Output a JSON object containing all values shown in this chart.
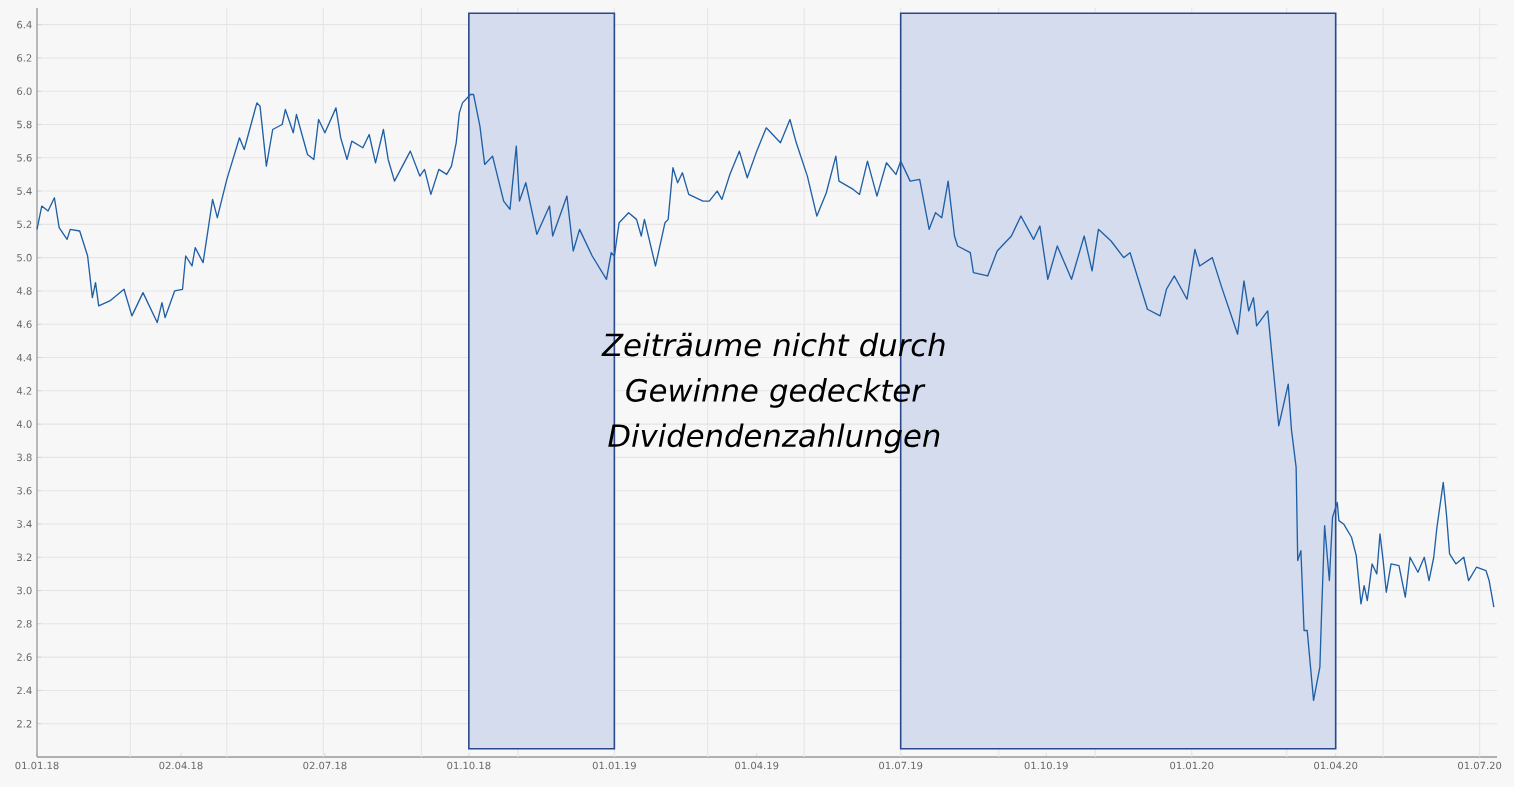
{
  "chart_data": {
    "type": "line",
    "x": [
      "2018-01-01",
      "2018-01-04",
      "2018-01-08",
      "2018-01-12",
      "2018-01-15",
      "2018-01-20",
      "2018-01-22",
      "2018-01-28",
      "2018-02-02",
      "2018-02-05",
      "2018-02-07",
      "2018-02-09",
      "2018-02-16",
      "2018-02-25",
      "2018-03-02",
      "2018-03-09",
      "2018-03-18",
      "2018-03-21",
      "2018-03-23",
      "2018-03-29",
      "2018-04-03",
      "2018-04-05",
      "2018-04-09",
      "2018-04-11",
      "2018-04-16",
      "2018-04-22",
      "2018-04-25",
      "2018-05-01",
      "2018-05-09",
      "2018-05-12",
      "2018-05-20",
      "2018-05-22",
      "2018-05-26",
      "2018-05-30",
      "2018-06-05",
      "2018-06-07",
      "2018-06-12",
      "2018-06-14",
      "2018-06-21",
      "2018-06-25",
      "2018-06-28",
      "2018-07-02",
      "2018-07-09",
      "2018-07-12",
      "2018-07-16",
      "2018-07-19",
      "2018-07-26",
      "2018-07-30",
      "2018-08-03",
      "2018-08-08",
      "2018-08-11",
      "2018-08-15",
      "2018-08-25",
      "2018-08-31",
      "2018-09-03",
      "2018-09-07",
      "2018-09-12",
      "2018-09-17",
      "2018-09-20",
      "2018-09-23",
      "2018-09-25",
      "2018-09-27",
      "2018-10-02",
      "2018-10-04",
      "2018-10-08",
      "2018-10-11",
      "2018-10-16",
      "2018-10-23",
      "2018-10-27",
      "2018-10-31",
      "2018-11-02",
      "2018-11-06",
      "2018-11-13",
      "2018-11-21",
      "2018-11-23",
      "2018-12-02",
      "2018-12-06",
      "2018-12-10",
      "2018-12-18",
      "2018-12-27",
      "2018-12-30",
      "2019-01-01",
      "2019-01-04",
      "2019-01-10",
      "2019-01-15",
      "2019-01-18",
      "2019-01-20",
      "2019-01-27",
      "2019-02-02",
      "2019-02-04",
      "2019-02-07",
      "2019-02-10",
      "2019-02-13",
      "2019-02-17",
      "2019-02-26",
      "2019-03-02",
      "2019-03-07",
      "2019-03-10",
      "2019-03-15",
      "2019-03-21",
      "2019-03-26",
      "2019-04-01",
      "2019-04-07",
      "2019-04-16",
      "2019-04-22",
      "2019-04-26",
      "2019-05-03",
      "2019-05-09",
      "2019-05-15",
      "2019-05-21",
      "2019-05-23",
      "2019-06-01",
      "2019-06-05",
      "2019-06-10",
      "2019-06-16",
      "2019-06-22",
      "2019-06-28",
      "2019-07-01",
      "2019-07-07",
      "2019-07-13",
      "2019-07-19",
      "2019-07-23",
      "2019-07-27",
      "2019-07-31",
      "2019-08-04",
      "2019-08-06",
      "2019-08-14",
      "2019-08-16",
      "2019-08-25",
      "2019-08-31",
      "2019-09-09",
      "2019-09-15",
      "2019-09-23",
      "2019-09-27",
      "2019-10-02",
      "2019-10-08",
      "2019-10-17",
      "2019-10-25",
      "2019-10-30",
      "2019-11-03",
      "2019-11-11",
      "2019-11-19",
      "2019-11-23",
      "2019-12-04",
      "2019-12-12",
      "2019-12-16",
      "2019-12-21",
      "2019-12-29",
      "2020-01-03",
      "2020-01-06",
      "2020-01-14",
      "2020-01-20",
      "2020-01-30",
      "2020-02-03",
      "2020-02-06",
      "2020-02-09",
      "2020-02-11",
      "2020-02-18",
      "2020-02-25",
      "2020-03-02",
      "2020-03-04",
      "2020-03-07",
      "2020-03-08",
      "2020-03-10",
      "2020-03-12",
      "2020-03-14",
      "2020-03-18",
      "2020-03-22",
      "2020-03-23",
      "2020-03-25",
      "2020-03-28",
      "2020-03-30",
      "2020-04-02",
      "2020-04-03",
      "2020-04-06",
      "2020-04-11",
      "2020-04-14",
      "2020-04-17",
      "2020-04-19",
      "2020-04-21",
      "2020-04-24",
      "2020-04-27",
      "2020-04-29",
      "2020-05-01",
      "2020-05-03",
      "2020-05-06",
      "2020-05-11",
      "2020-05-15",
      "2020-05-18",
      "2020-05-23",
      "2020-05-27",
      "2020-05-30",
      "2020-06-02",
      "2020-06-04",
      "2020-06-08",
      "2020-06-10",
      "2020-06-12",
      "2020-06-16",
      "2020-06-21",
      "2020-06-24",
      "2020-06-29",
      "2020-07-05",
      "2020-07-07",
      "2020-07-10"
    ],
    "series": [
      {
        "color": "#1f5fa6",
        "values": [
          5.17,
          5.31,
          5.28,
          5.36,
          5.18,
          5.11,
          5.17,
          5.16,
          5.01,
          4.76,
          4.85,
          4.71,
          4.74,
          4.81,
          4.65,
          4.79,
          4.61,
          4.73,
          4.64,
          4.8,
          4.81,
          5.01,
          4.95,
          5.06,
          4.97,
          5.35,
          5.24,
          5.47,
          5.72,
          5.65,
          5.93,
          5.91,
          5.55,
          5.77,
          5.8,
          5.89,
          5.75,
          5.86,
          5.62,
          5.59,
          5.83,
          5.75,
          5.9,
          5.72,
          5.59,
          5.7,
          5.66,
          5.74,
          5.57,
          5.77,
          5.59,
          5.46,
          5.64,
          5.49,
          5.53,
          5.38,
          5.53,
          5.5,
          5.55,
          5.69,
          5.87,
          5.93,
          5.98,
          5.98,
          5.79,
          5.56,
          5.61,
          5.34,
          5.29,
          5.67,
          5.34,
          5.45,
          5.14,
          5.31,
          5.13,
          5.37,
          5.04,
          5.17,
          5.01,
          4.87,
          5.03,
          5.01,
          5.21,
          5.27,
          5.23,
          5.13,
          5.23,
          4.95,
          5.21,
          5.23,
          5.54,
          5.45,
          5.51,
          5.38,
          5.34,
          5.34,
          5.4,
          5.35,
          5.5,
          5.64,
          5.48,
          5.64,
          5.78,
          5.69,
          5.83,
          5.69,
          5.49,
          5.25,
          5.39,
          5.61,
          5.46,
          5.41,
          5.38,
          5.58,
          5.37,
          5.57,
          5.5,
          5.58,
          5.46,
          5.47,
          5.17,
          5.27,
          5.24,
          5.46,
          5.13,
          5.07,
          5.03,
          4.91,
          4.89,
          5.04,
          5.13,
          5.25,
          5.11,
          5.19,
          4.87,
          5.07,
          4.87,
          5.13,
          4.92,
          5.17,
          5.1,
          5.0,
          5.03,
          4.69,
          4.65,
          4.81,
          4.89,
          4.75,
          5.05,
          4.95,
          5.0,
          4.82,
          4.54,
          4.86,
          4.68,
          4.76,
          4.59,
          4.68,
          3.99,
          4.24,
          3.97,
          3.74,
          3.18,
          3.24,
          2.76,
          2.76,
          2.34,
          2.54,
          2.84,
          3.39,
          3.06,
          3.44,
          3.53,
          3.42,
          3.4,
          3.32,
          3.21,
          2.92,
          3.03,
          2.94,
          3.16,
          3.1,
          3.34,
          3.18,
          2.99,
          3.16,
          3.15,
          2.96,
          3.2,
          3.11,
          3.2,
          3.06,
          3.2,
          3.38,
          3.65,
          3.46,
          3.22,
          3.16,
          3.2,
          3.06,
          3.14,
          3.12,
          3.06,
          2.9
        ]
      }
    ],
    "xlim": [
      "2018-01-01",
      "2020-07-12"
    ],
    "xticks": [
      {
        "value": "2018-01-01",
        "label": "01.01.18"
      },
      {
        "value": "2018-04-02",
        "label": "02.04.18"
      },
      {
        "value": "2018-07-02",
        "label": "02.07.18"
      },
      {
        "value": "2018-10-01",
        "label": "01.10.18"
      },
      {
        "value": "2019-01-01",
        "label": "01.01.19"
      },
      {
        "value": "2019-04-01",
        "label": "01.04.19"
      },
      {
        "value": "2019-07-01",
        "label": "01.07.19"
      },
      {
        "value": "2019-10-01",
        "label": "01.10.19"
      },
      {
        "value": "2020-01-01",
        "label": "01.01.20"
      },
      {
        "value": "2020-04-01",
        "label": "01.04.20"
      },
      {
        "value": "2020-07-01",
        "label": "01.07.20"
      },
      {
        "value": "2018-03-01",
        "label": null
      },
      {
        "value": "2018-05-01",
        "label": null
      },
      {
        "value": "2018-07-01",
        "label": null
      },
      {
        "value": "2018-09-01",
        "label": null
      },
      {
        "value": "2018-11-01",
        "label": null
      },
      {
        "value": "2019-01-01",
        "label": null
      },
      {
        "value": "2019-03-01",
        "label": null
      },
      {
        "value": "2019-05-01",
        "label": null
      },
      {
        "value": "2019-07-01",
        "label": null
      },
      {
        "value": "2019-09-01",
        "label": null
      },
      {
        "value": "2019-11-01",
        "label": null
      },
      {
        "value": "2020-01-01",
        "label": null
      },
      {
        "value": "2020-03-01",
        "label": null
      },
      {
        "value": "2020-05-01",
        "label": null
      },
      {
        "value": "2020-07-01",
        "label": null
      }
    ],
    "ylim": [
      2.0,
      6.5
    ],
    "yticks": [
      2.2,
      2.4,
      2.6,
      2.8,
      {
        "value": 3,
        "label": "3.0"
      },
      3.2,
      3.4,
      3.6,
      3.8,
      {
        "value": 4,
        "label": "4.0"
      },
      4.2,
      4.4,
      4.6,
      4.8,
      {
        "value": 5,
        "label": "5.0"
      },
      5.2,
      5.4,
      5.6,
      5.8,
      {
        "value": 6,
        "label": "6.0"
      },
      6.2,
      6.4
    ],
    "grid": true,
    "bands": [
      {
        "axis": "x",
        "from": "2018-10-01",
        "to": "2019-01-01",
        "color": "#d4dcee"
      },
      {
        "axis": "x",
        "from": "2019-07-01",
        "to": "2020-04-01",
        "color": "#d4dcee"
      }
    ],
    "annotations": [
      "Zeiträume nicht durch Gewinne gedeckter Dividendenzahlungen"
    ]
  }
}
